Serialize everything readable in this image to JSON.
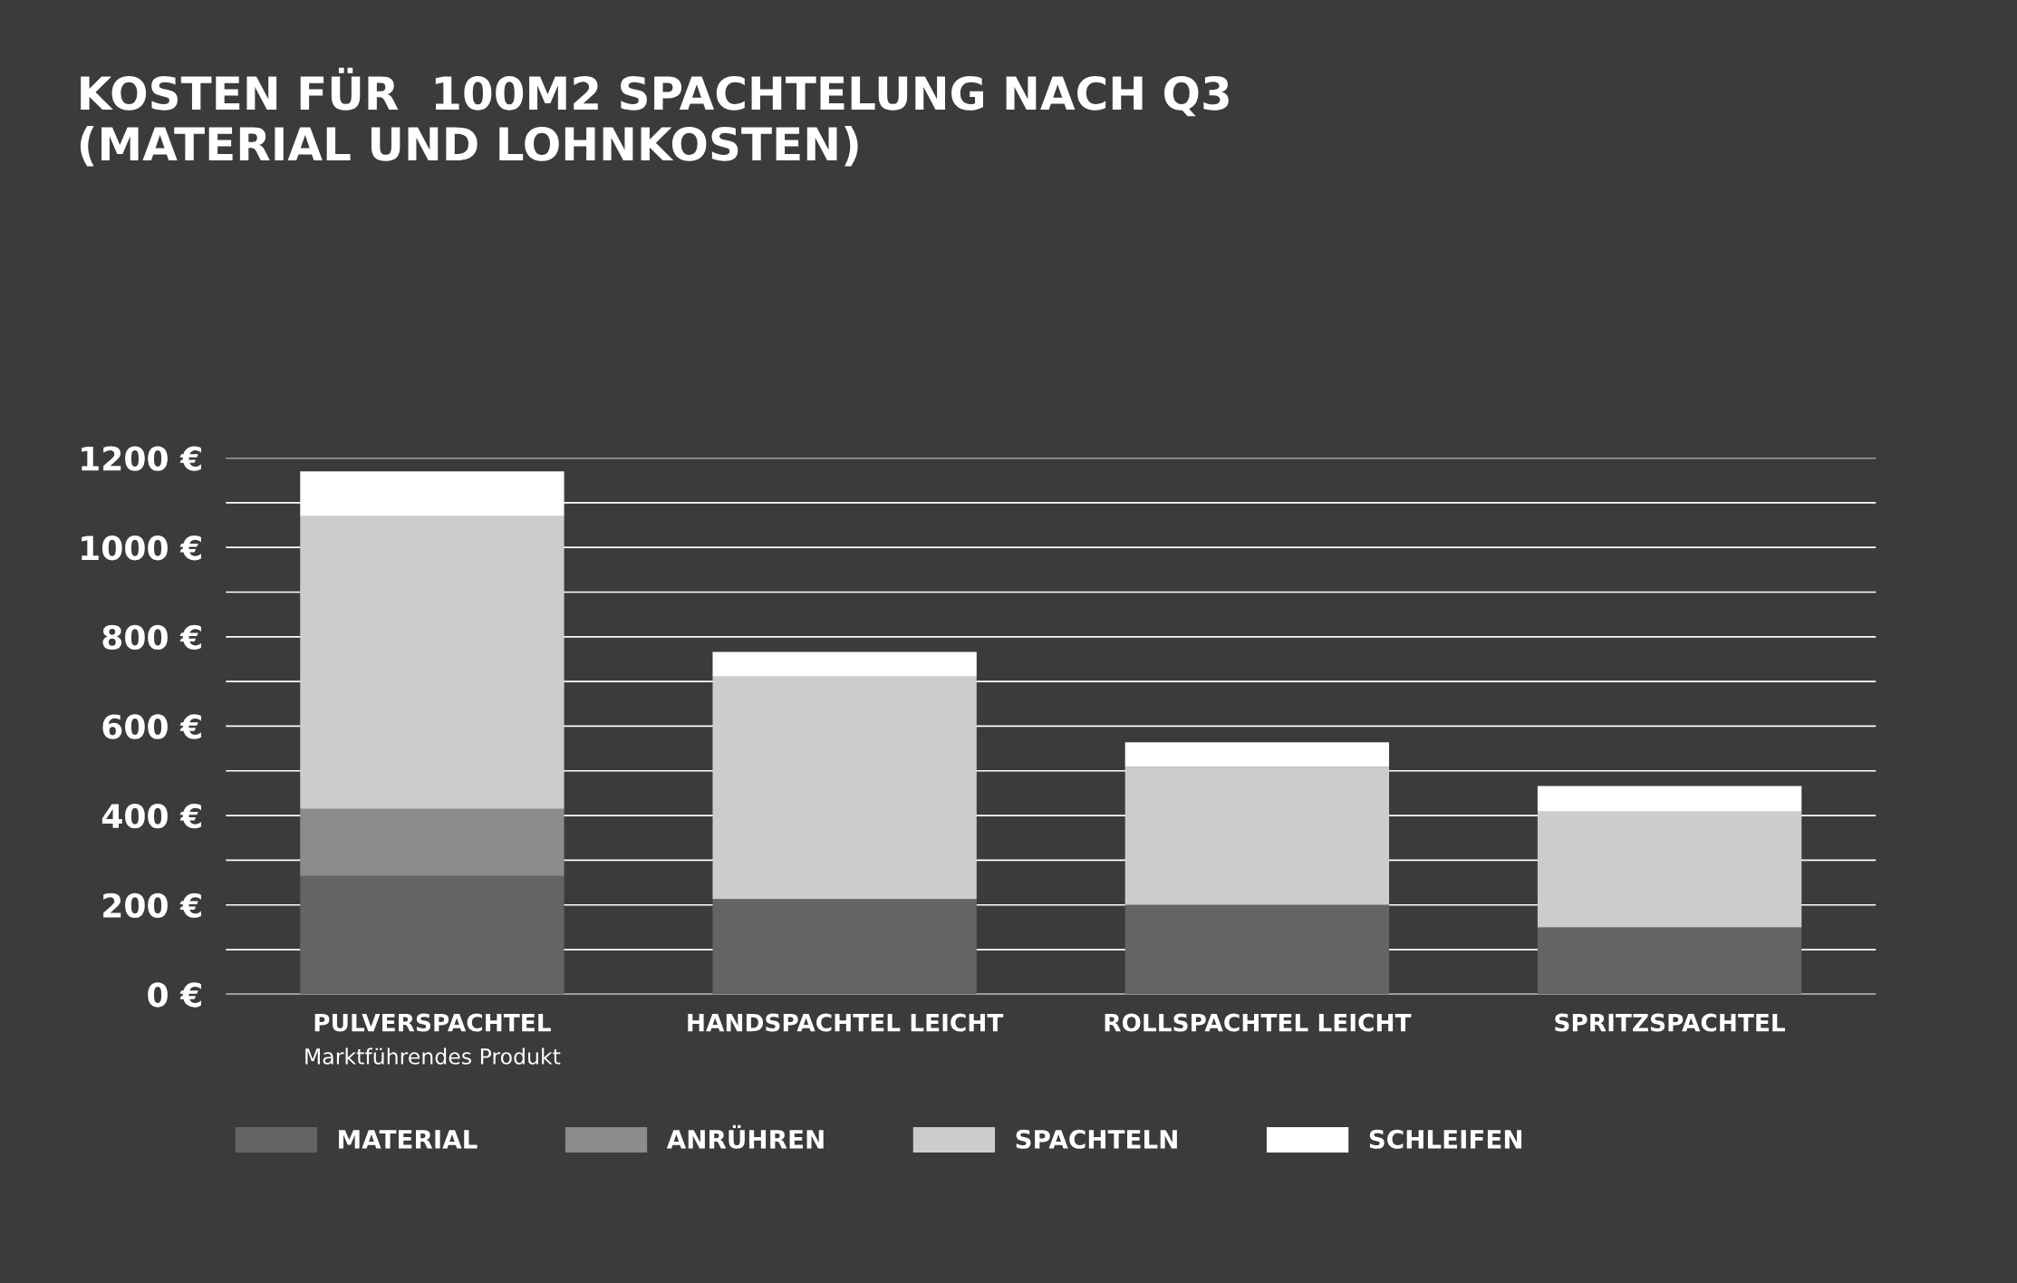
{
  "chart_data": {
    "type": "bar",
    "stacked": true,
    "title": "KOSTEN FÜR  100M2 SPACHTELUNG NACH Q3\n(MATERIAL UND LOHNKOSTEN)",
    "categories": [
      "PULVERSPACHTEL\nMarktführendes Produkt",
      "HANDSPACHTEL LEICHT",
      "ROLLSPACHTEL LEICHT",
      "SPRITZSPACHTEL"
    ],
    "series": [
      {
        "name": "MATERIAL",
        "color": "#646464",
        "values": [
          265,
          213,
          201,
          150
        ]
      },
      {
        "name": "ANRÜHREN",
        "color": "#8c8c8c",
        "values": [
          150,
          0,
          0,
          0
        ]
      },
      {
        "name": "SPACHTELN",
        "color": "#cccccc",
        "values": [
          655,
          498,
          308,
          259
        ]
      },
      {
        "name": "SCHLEIFEN",
        "color": "#ffffff",
        "values": [
          100,
          55,
          55,
          57
        ]
      }
    ],
    "ylim": [
      0,
      1200
    ],
    "yticks": [
      {
        "value": 0,
        "label": "0 €"
      },
      {
        "value": 100,
        "label": null
      },
      {
        "value": 200,
        "label": "200 €"
      },
      {
        "value": 300,
        "label": null
      },
      {
        "value": 400,
        "label": "400 €"
      },
      {
        "value": 500,
        "label": null
      },
      {
        "value": 600,
        "label": "600 €"
      },
      {
        "value": 700,
        "label": null
      },
      {
        "value": 800,
        "label": "800 €"
      },
      {
        "value": 900,
        "label": null
      },
      {
        "value": 1000,
        "label": "1000 €"
      },
      {
        "value": 1100,
        "label": null
      },
      {
        "value": 1200,
        "label": "1200 €"
      }
    ],
    "grid": "y",
    "legend": "bottom left"
  }
}
